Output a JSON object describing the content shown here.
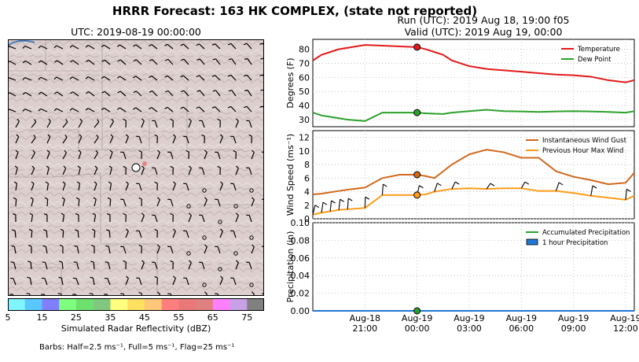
{
  "figure": {
    "title": "HRRR Forecast: 163 HK COMPLEX, (state not reported)",
    "run": "Run (UTC): 2019 Aug 18, 19:00 f05",
    "valid": "Valid (UTC): 2019 Aug 19, 00:00",
    "barbs_note": "Barbs: Half=2.5 ms⁻¹, Full=5 ms⁻¹, Flag=25 ms⁻¹"
  },
  "map": {
    "title": "UTC: 2019-08-19 00:00:00",
    "colors": {
      "terrain": "#d8cccb",
      "marker": "#ffffff"
    }
  },
  "colorbar": {
    "label": "Simulated Radar Reflectivity (dBZ)",
    "ticks": [
      "5",
      "15",
      "25",
      "35",
      "45",
      "55",
      "65",
      "75"
    ],
    "colors": [
      "#7ff5ff",
      "#5ac8ff",
      "#8080ff",
      "#7fff7f",
      "#6ee06e",
      "#80c880",
      "#ffff7f",
      "#ffe060",
      "#ffc878",
      "#ff7f7f",
      "#ea7878",
      "#e08080",
      "#ff7fff",
      "#c8a0e6",
      "#808080"
    ]
  },
  "chart_data": [
    {
      "type": "line",
      "ylabel": "Degrees (F)",
      "ylim": [
        25,
        87
      ],
      "yticks": [
        30,
        40,
        50,
        60,
        70,
        80
      ],
      "x": [
        "18:00",
        "18:30",
        "19:00",
        "19:30",
        "20:00",
        "21:00",
        "22:00",
        "23:00",
        "00:00",
        "00:30",
        "01:00",
        "01:30",
        "02:00",
        "03:00",
        "04:00",
        "05:00",
        "06:00",
        "07:00",
        "08:00",
        "09:00",
        "10:00",
        "11:00",
        "12:00",
        "12:30"
      ],
      "series": [
        {
          "name": "Temperature",
          "color": "#e31a1c",
          "values": [
            72,
            76,
            78,
            80,
            81,
            83,
            82.5,
            82,
            81.5,
            80,
            78,
            76,
            72,
            68,
            66,
            65,
            64,
            63,
            62,
            61.5,
            60.5,
            58,
            56.5,
            58
          ]
        },
        {
          "name": "Dew Point",
          "color": "#2ca02c",
          "values": [
            35,
            33,
            32,
            31,
            30,
            29,
            35,
            35,
            35,
            34.5,
            34.2,
            34,
            35,
            36,
            37,
            36,
            35.8,
            35.5,
            35.8,
            36,
            35.8,
            35.5,
            35,
            36
          ]
        }
      ],
      "highlight": {
        "x": "00:00",
        "values": [
          81.5,
          35
        ]
      },
      "legend": "top-right"
    },
    {
      "type": "line",
      "ylabel": "Wind Speed (ms⁻¹)",
      "ylim": [
        0,
        13
      ],
      "yticks": [
        0,
        2,
        4,
        6,
        8,
        10,
        12
      ],
      "x": [
        "18:00",
        "18:30",
        "19:00",
        "19:30",
        "20:00",
        "21:00",
        "22:00",
        "23:00",
        "00:00",
        "00:30",
        "01:00",
        "01:30",
        "02:00",
        "03:00",
        "04:00",
        "05:00",
        "06:00",
        "07:00",
        "08:00",
        "09:00",
        "10:00",
        "11:00",
        "12:00",
        "12:30"
      ],
      "series": [
        {
          "name": "Instantaneous Wind Gust",
          "color": "#d2691e",
          "values": [
            3.6,
            3.7,
            3.9,
            4.1,
            4.3,
            4.6,
            6.0,
            6.5,
            6.5,
            6.3,
            6.0,
            7.0,
            8.0,
            9.5,
            10.2,
            9.8,
            9.0,
            9.0,
            7.0,
            6.2,
            5.7,
            5.1,
            5.3,
            6.8
          ]
        },
        {
          "name": "Previous Hour Max Wind",
          "color": "#ff9c1a",
          "values": [
            0.6,
            0.9,
            1.1,
            1.3,
            1.4,
            1.6,
            3.5,
            3.5,
            3.5,
            3.6,
            4.0,
            4.2,
            4.4,
            4.5,
            4.4,
            4.5,
            4.5,
            4.1,
            4.1,
            3.8,
            3.4,
            3.1,
            2.8,
            3.4
          ]
        }
      ],
      "highlight": {
        "x": "00:00",
        "values": [
          6.5,
          3.5
        ]
      },
      "legend": "top-right"
    },
    {
      "type": "bar",
      "ylabel": "Precipitation (in)",
      "ylim": [
        0,
        0.1
      ],
      "yticks": [
        "0.00",
        "0.02",
        "0.04",
        "0.06",
        "0.08",
        "0.10"
      ],
      "x": [
        "18:00",
        "00:00",
        "12:30"
      ],
      "series": [
        {
          "name": "Accumulated Precipitation",
          "color": "#2ca02c",
          "values": [
            0,
            0,
            0
          ]
        },
        {
          "name": "1 hour Precipitation",
          "color": "#1f78d4",
          "values": [
            0,
            0,
            0
          ]
        }
      ],
      "highlight": {
        "x": "00:00",
        "values": [
          0
        ]
      },
      "xtick_labels": [
        {
          "line1": "Aug-18",
          "line2": "21:00"
        },
        {
          "line1": "Aug-19",
          "line2": "00:00"
        },
        {
          "line1": "Aug-19",
          "line2": "03:00"
        },
        {
          "line1": "Aug-19",
          "line2": "06:00"
        },
        {
          "line1": "Aug-19",
          "line2": "09:00"
        },
        {
          "line1": "Aug-19",
          "line2": "12:00"
        }
      ],
      "legend": "top-right"
    }
  ]
}
